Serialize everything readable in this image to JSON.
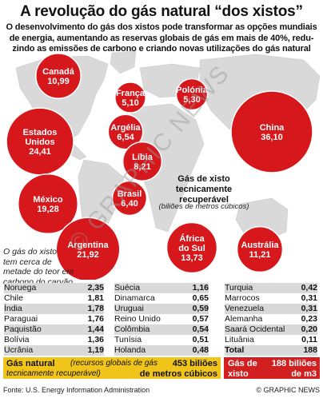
{
  "header": {
    "title": "A revolução do gás natural “dos xistos”",
    "subtitle_lines": [
      "O desenvolvimento do gás dos xistos pode transformar as opções mundiais",
      "de energia, aumentando as reservas globais de gás em mais de 40%, redu-",
      "zindo as emissões de carbono e criando novas utilizações do gás natural"
    ]
  },
  "legend": {
    "title_lines": [
      "Gás de xisto",
      "tecnicamente",
      "recuperável"
    ],
    "unit": "(biliões de metros cúbicos)"
  },
  "side_note_lines": [
    "O gás do xisto",
    "tem cerca de",
    "metade do teor em",
    "carbono do carvão"
  ],
  "chart_data": {
    "type": "bubble",
    "title": "A revolução do gás natural “dos xistos”",
    "unit": "biliões de metros cúbicos",
    "bubbles": [
      {
        "name": "Canadá",
        "value": 10.99,
        "label": "10,99"
      },
      {
        "name": "França",
        "value": 5.1,
        "label": "5,10"
      },
      {
        "name": "Polónia",
        "value": 5.3,
        "label": "5,30"
      },
      {
        "name": "Estados Unidos",
        "name_lines": [
          "Estados",
          "Unidos"
        ],
        "value": 24.41,
        "label": "24,41"
      },
      {
        "name": "Argélia",
        "value": 6.54,
        "label": "6,54"
      },
      {
        "name": "China",
        "value": 36.1,
        "label": "36,10"
      },
      {
        "name": "Líbia",
        "value": 8.21,
        "label": "8,21"
      },
      {
        "name": "México",
        "value": 19.28,
        "label": "19,28"
      },
      {
        "name": "Brasil",
        "value": 6.4,
        "label": "6,40"
      },
      {
        "name": "Argentina",
        "value": 21.92,
        "label": "21,92"
      },
      {
        "name": "África do Sul",
        "name_lines": [
          "África",
          "do Sul"
        ],
        "value": 13.73,
        "label": "13,73"
      },
      {
        "name": "Austrália",
        "value": 11.21,
        "label": "11,21"
      }
    ],
    "table": [
      [
        {
          "name": "Noruega",
          "value": "2,35"
        },
        {
          "name": "Chile",
          "value": "1,81"
        },
        {
          "name": "Índia",
          "value": "1,78"
        },
        {
          "name": "Paraguai",
          "value": "1,76"
        },
        {
          "name": "Paquistão",
          "value": "1,44"
        },
        {
          "name": "Bolívia",
          "value": "1,36"
        },
        {
          "name": "Ucrânia",
          "value": "1,19"
        }
      ],
      [
        {
          "name": "Suécia",
          "value": "1,16"
        },
        {
          "name": "Dinamarca",
          "value": "0,65"
        },
        {
          "name": "Uruguai",
          "value": "0,59"
        },
        {
          "name": "Reino Unido",
          "value": "0,57"
        },
        {
          "name": "Colômbia",
          "value": "0,54"
        },
        {
          "name": "Tunísia",
          "value": "0,51"
        },
        {
          "name": "Holanda",
          "value": "0,48"
        }
      ],
      [
        {
          "name": "Turquia",
          "value": "0,42"
        },
        {
          "name": "Marrocos",
          "value": "0,31"
        },
        {
          "name": "Venezuela",
          "value": "0,31"
        },
        {
          "name": "Alemanha",
          "value": "0,23"
        },
        {
          "name": "Saará Ocidental",
          "value": "0,20"
        },
        {
          "name": "Lituânia",
          "value": "0,11"
        },
        {
          "name": "Total",
          "value": "188"
        }
      ]
    ]
  },
  "footer": {
    "natural_gas_label": "Gás natural",
    "natural_gas_note_a": "(recursos globais de gás",
    "natural_gas_note_b": "tecnicamente recuperável)",
    "natural_gas_value_a": "453 biliões",
    "natural_gas_value_b": "de metros cúbicos",
    "shale_label_a": "Gás de",
    "shale_label_b": "xisto",
    "shale_value_a": "188 biliões",
    "shale_value_b": "de m3",
    "source": "Fonte: U.S. Energy Information Administration",
    "credit": "© GRAPHIC NEWS",
    "watermark": "© GRAPHIC NEWS"
  },
  "colors": {
    "bubble": "#d6171c",
    "bubble_edge": "#ffffff",
    "land": "#d9d9d9",
    "gas_band": "#f0c418",
    "shale_band": "#d21f1f"
  }
}
